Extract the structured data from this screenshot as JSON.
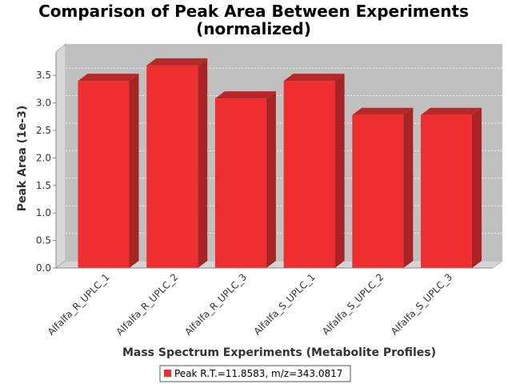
{
  "chart_data": {
    "type": "bar",
    "title": "Comparison of Peak Area Between Experiments",
    "subtitle": "(normalized)",
    "xlabel": "Mass Spectrum Experiments (Metabolite Profiles)",
    "ylabel": "Peak Area (1e-3)",
    "categories": [
      "Alfalfa_R_UPLC_1",
      "Alfalfa_R_UPLC_2",
      "Alfalfa_R_UPLC_3",
      "Alfalfa_S_UPLC_1",
      "Alfalfa_S_UPLC_2",
      "Alfalfa_S_UPLC_3"
    ],
    "series": [
      {
        "name": "Peak R.T.=11.8583, m/z=343.0817",
        "values": [
          3.4,
          3.68,
          3.08,
          3.4,
          2.78,
          2.78
        ],
        "color": "#ef2f2f"
      }
    ],
    "ylim": [
      0,
      3.9
    ],
    "yticks": [
      "0.0",
      "0.5",
      "1.0",
      "1.5",
      "2.0",
      "2.5",
      "3.0",
      "3.5"
    ],
    "grid": true,
    "legend": "bottom",
    "plot_background": "#c0c0c0"
  }
}
